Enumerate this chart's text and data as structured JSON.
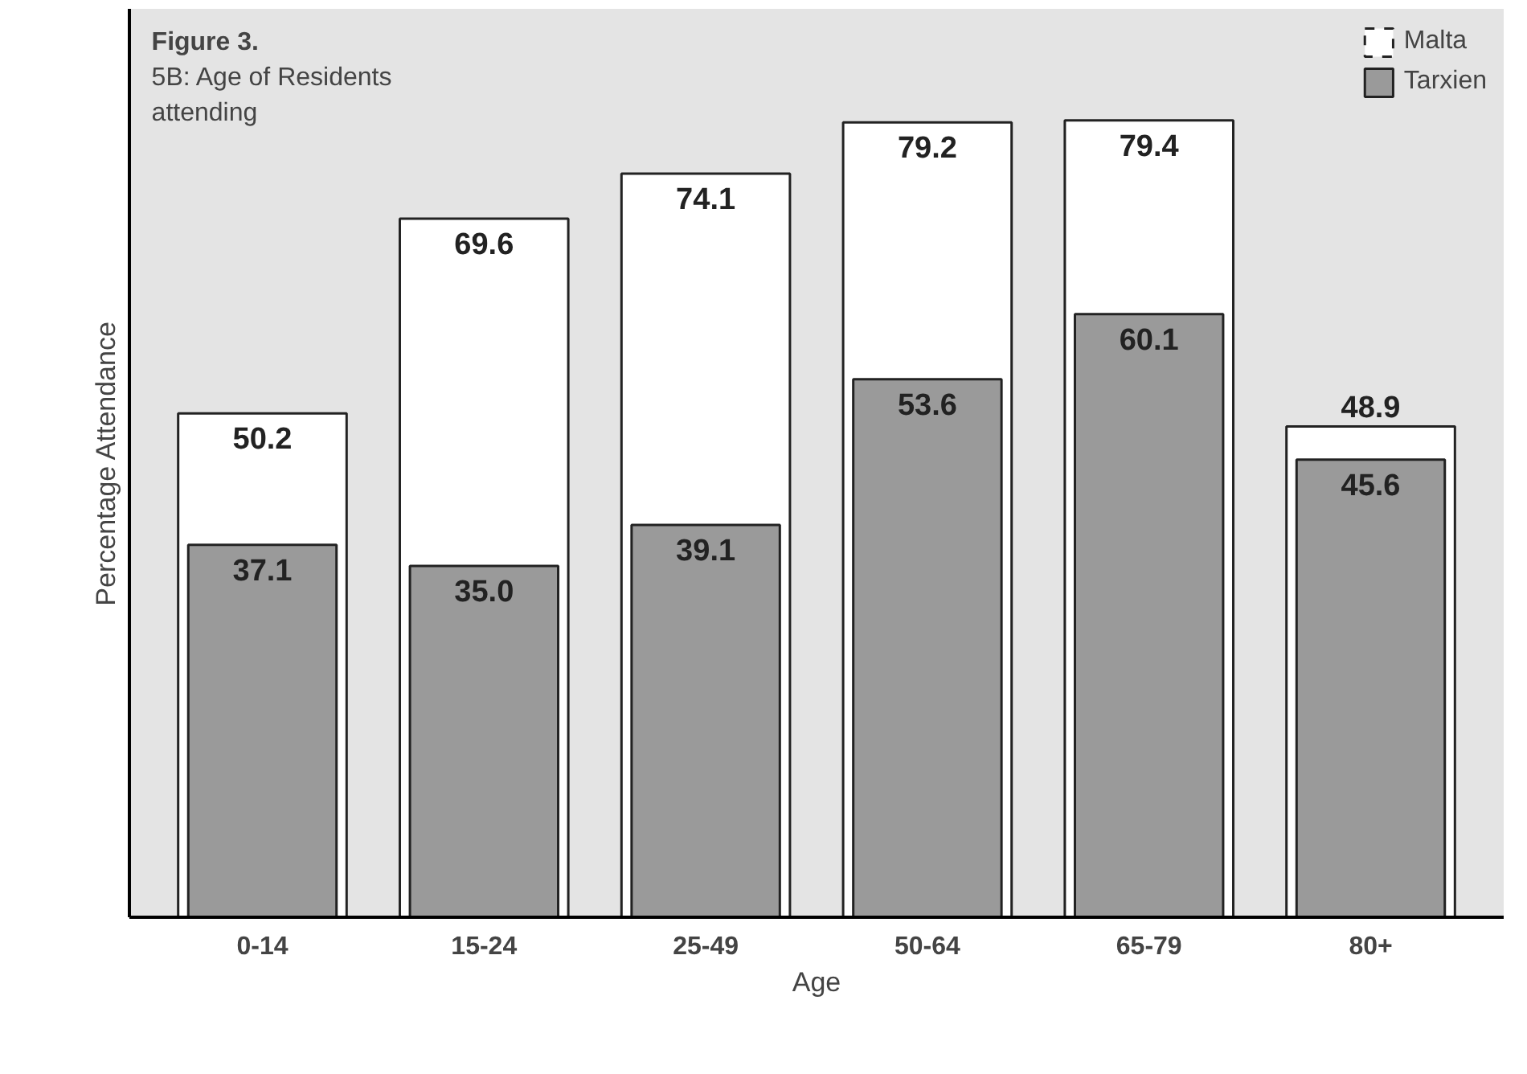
{
  "chart_data": {
    "type": "bar",
    "title": "Figure 3.",
    "subtitle": "5B: Age of Residents attending",
    "xlabel": "Age",
    "ylabel": "Percentage Attendance",
    "categories": [
      "0-14",
      "15-24",
      "25-49",
      "50-64",
      "65-79",
      "80+"
    ],
    "series": [
      {
        "name": "Malta",
        "color": "#ffffff",
        "values": [
          50.2,
          69.6,
          74.1,
          79.2,
          79.4,
          48.9
        ],
        "value_labels": [
          "50.2",
          "69.6",
          "74.1",
          "79.2",
          "79.4",
          "48.9"
        ],
        "line_style": "dashed"
      },
      {
        "name": "Tarxien",
        "color": "#9a9a9a",
        "values": [
          37.1,
          35.0,
          39.1,
          53.6,
          60.1,
          45.6
        ],
        "value_labels": [
          "37.1",
          "35.0",
          "39.1",
          "53.6",
          "60.1",
          "45.6"
        ]
      }
    ],
    "legend": "top right",
    "tick_labels": "x"
  }
}
